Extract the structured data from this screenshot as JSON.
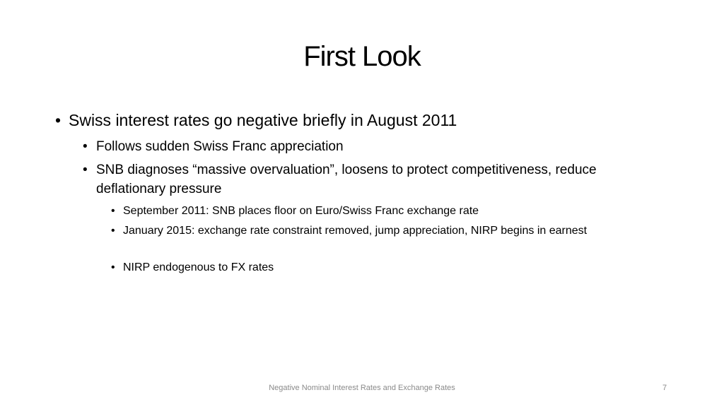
{
  "slide": {
    "title": "First Look",
    "bullets": [
      {
        "text": "Swiss interest rates go negative briefly in August 2011",
        "children": [
          {
            "text": "Follows sudden Swiss Franc appreciation"
          },
          {
            "text": "SNB diagnoses “massive overvaluation”, loosens to protect competitiveness, reduce deflationary pressure",
            "children": [
              {
                "text": "September 2011: SNB places floor on Euro/Swiss Franc exchange rate"
              },
              {
                "text": "January 2015: exchange rate constraint removed, jump appreciation, NIRP begins in earnest"
              },
              {
                "text": "NIRP endogenous to FX rates"
              }
            ]
          }
        ]
      }
    ]
  },
  "footer": {
    "text": "Negative Nominal Interest Rates and Exchange Rates",
    "page": "7"
  }
}
